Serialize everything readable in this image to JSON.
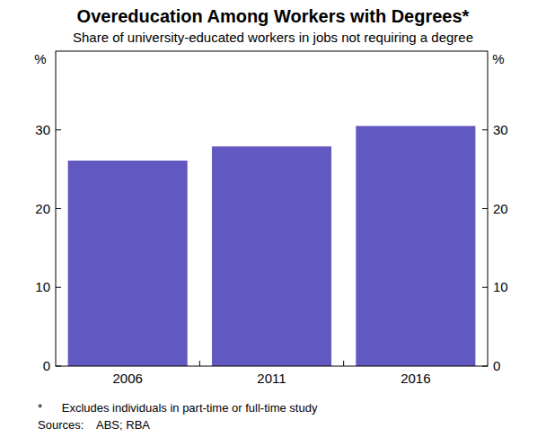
{
  "chart_data": {
    "type": "bar",
    "title": "Overeducation Among Workers with Degrees*",
    "subtitle": "Share of university-educated workers in jobs not requiring a degree",
    "y_label": "%",
    "categories": [
      "2006",
      "2011",
      "2016"
    ],
    "values": [
      26.1,
      27.9,
      30.5
    ],
    "color": "#6158c2",
    "ylim": [
      0,
      40
    ],
    "yticks": [
      0,
      10,
      20,
      30
    ],
    "grid": false,
    "footnote": "*      Excludes individuals in part-time or full-time study",
    "sources": "Sources:    ABS; RBA"
  }
}
